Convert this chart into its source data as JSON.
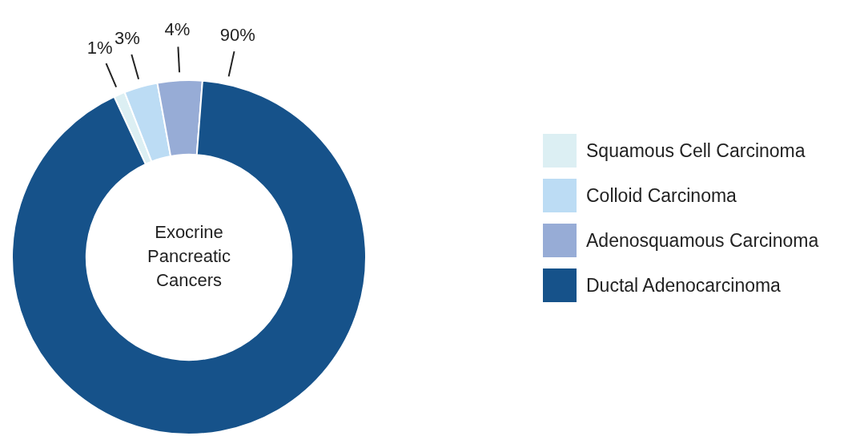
{
  "chart_data": {
    "type": "donut",
    "title": "Exocrine Pancreatic Cancers",
    "categories": [
      "Squamous Cell Carcinoma",
      "Colloid Carcinoma",
      "Adenosquamous Carcinoma",
      "Ductal Adenocarcinoma"
    ],
    "values": [
      1,
      3,
      4,
      90
    ],
    "colors": [
      "#dceff3",
      "#bcdcf4",
      "#97acd6",
      "#16528a"
    ],
    "value_labels": [
      "1%",
      "3%",
      "4%",
      "90%"
    ],
    "legend": "right"
  }
}
